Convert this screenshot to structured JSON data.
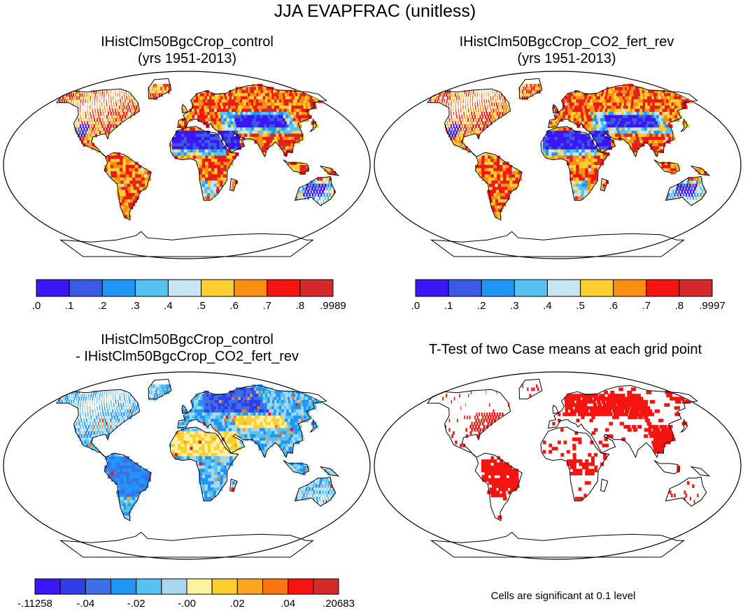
{
  "figure": {
    "title": "JJA EVAPFRAC (unitless)"
  },
  "panels": [
    {
      "id": "control",
      "title_line1": "IHistClm50BgcCrop_control",
      "title_line2": "(yrs 1951-2013)",
      "colorbar": {
        "colors": [
          "#3b17f5",
          "#3b5ae6",
          "#1f96f5",
          "#55c2f2",
          "#c6e6f5",
          "#fbcf2f",
          "#fb8f10",
          "#f51410",
          "#d42a2a"
        ],
        "labels": [
          ".0",
          ".1",
          ".2",
          ".3",
          ".4",
          ".5",
          ".6",
          ".7",
          ".8",
          ".9989"
        ]
      }
    },
    {
      "id": "co2_fert_rev",
      "title_line1": "IHistClm50BgcCrop_CO2_fert_rev",
      "title_line2": "(yrs 1951-2013)",
      "colorbar": {
        "colors": [
          "#3b17f5",
          "#3b5ae6",
          "#1f96f5",
          "#55c2f2",
          "#c6e6f5",
          "#fbcf2f",
          "#fb8f10",
          "#f51410",
          "#d42a2a"
        ],
        "labels": [
          ".0",
          ".1",
          ".2",
          ".3",
          ".4",
          ".5",
          ".6",
          ".7",
          ".8",
          ".9997"
        ]
      }
    },
    {
      "id": "difference",
      "title_line1": "IHistClm50BgcCrop_control",
      "title_line2": "- IHistClm50BgcCrop_CO2_fert_rev",
      "colorbar": {
        "colors": [
          "#3b17f5",
          "#2f3ee6",
          "#3d6fe6",
          "#1f96f5",
          "#55c2f2",
          "#aad6ef",
          "#fdf2a0",
          "#fbcf2f",
          "#fba520",
          "#fb7410",
          "#f51410",
          "#d42a2a"
        ],
        "labels": [
          "-.11258",
          "-.04",
          "-.02",
          "-.00",
          ".02",
          ".04",
          ".20683"
        ]
      }
    },
    {
      "id": "ttest",
      "title_line1": "T-Test of two Case means at each grid point",
      "note": "Cells are significant at 0.1 level"
    }
  ]
}
